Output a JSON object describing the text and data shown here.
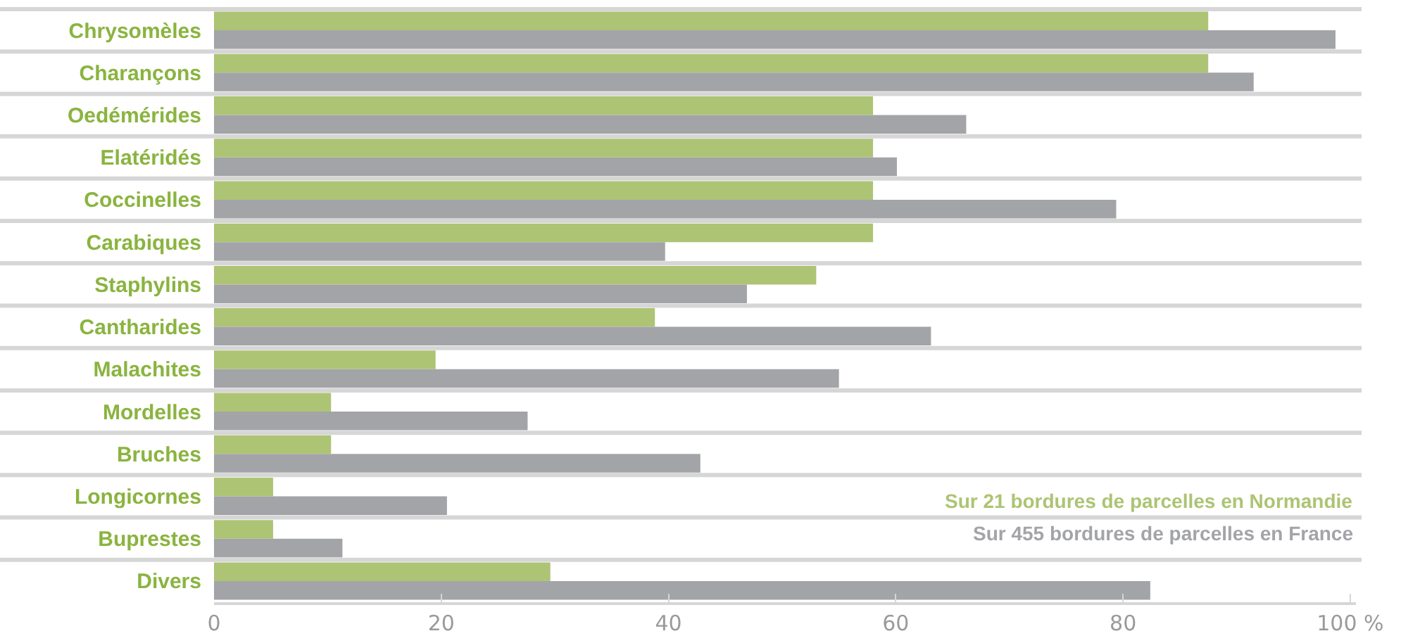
{
  "chart_data": {
    "type": "bar",
    "orientation": "horizontal",
    "categories": [
      "Chrysomèles",
      "Charançons",
      "Oedémérides",
      "Elatéridés",
      "Coccinelles",
      "Carabiques",
      "Staphylins",
      "Cantharides",
      "Malachites",
      "Mordelles",
      "Bruches",
      "Longicornes",
      "Buprestes",
      "Divers"
    ],
    "series": [
      {
        "name": "Sur 21 bordures de parcelles en Normandie",
        "color": "#adc474",
        "values": [
          87.5,
          87.5,
          58,
          58,
          58,
          58,
          53,
          38.8,
          19.5,
          10.3,
          10.3,
          5.2,
          5.2,
          29.6
        ]
      },
      {
        "name": "Sur 455 bordures de parcelles en France",
        "color": "#a3a4a8",
        "values": [
          98.7,
          91.5,
          66.2,
          60.1,
          79.4,
          39.7,
          46.9,
          63.1,
          55,
          27.6,
          42.8,
          20.5,
          11.3,
          82.4
        ]
      }
    ],
    "xlim": [
      0,
      100.5
    ],
    "xticks": [
      0,
      20,
      40,
      60,
      80,
      {
        "value": 100,
        "label": "100 %"
      }
    ],
    "grid": "y",
    "legend": "bottom right"
  }
}
